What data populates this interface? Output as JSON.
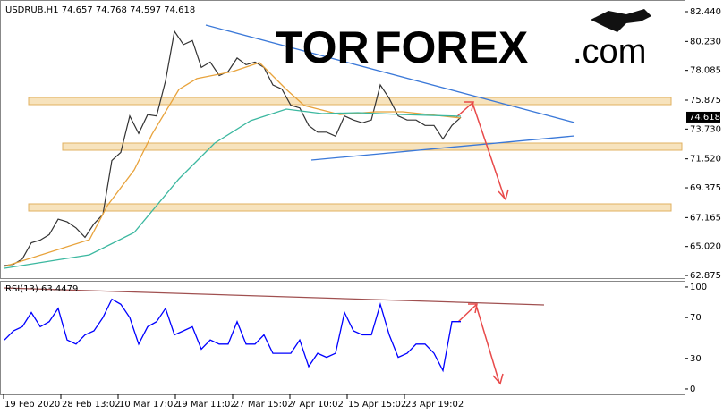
{
  "chart_data": [
    {
      "type": "line",
      "title": "USDRUB,H1  74.657 74.768 74.597 74.618",
      "last_price": 74.618,
      "xlim": [
        -0.5,
        76
      ],
      "ylim": [
        62.679,
        83.302
      ],
      "yticks": [
        {
          "value": 62.875,
          "label": "62.875"
        },
        {
          "value": 65.02,
          "label": "65.020"
        },
        67.165,
        69.375,
        {
          "value": 71.52,
          "label": "71.520"
        },
        {
          "value": 73.73,
          "label": "73.730"
        },
        75.875,
        78.085,
        {
          "value": 80.23,
          "label": "80.230"
        },
        {
          "value": 82.44,
          "label": "82.440"
        }
      ],
      "x": [
        0,
        1,
        2,
        3,
        4,
        5,
        6,
        7,
        8,
        9,
        10,
        11,
        12,
        13,
        14,
        15,
        16,
        17,
        18,
        19,
        20,
        21,
        22,
        23,
        24,
        25,
        26,
        27,
        28,
        29,
        30,
        31,
        32,
        33,
        34,
        35,
        36,
        37,
        38,
        39,
        40,
        41,
        42,
        43,
        44,
        45,
        46,
        47,
        48,
        49,
        50,
        51
      ],
      "series": [
        {
          "color": "#333333",
          "values": [
            63.6,
            63.7,
            64.1,
            65.3,
            65.5,
            65.9,
            67.05,
            66.85,
            66.4,
            65.7,
            66.7,
            67.4,
            71.4,
            72.0,
            74.7,
            73.4,
            74.8,
            74.7,
            77.3,
            80.98,
            79.99,
            80.3,
            78.3,
            78.7,
            77.7,
            78.0,
            79.0,
            78.5,
            78.7,
            78.3,
            77.0,
            76.7,
            75.5,
            75.3,
            74.0,
            73.5,
            73.5,
            73.2,
            74.7,
            74.4,
            74.2,
            74.4,
            77.0,
            76.0,
            74.7,
            74.4,
            74.4,
            74.0,
            74.0,
            73.0,
            74.0,
            74.6
          ]
        },
        {
          "color": "#e8a33c",
          "x": [
            0,
            9.5,
            11.5,
            14.5,
            16.5,
            19.5,
            21.5,
            25.5,
            28.5,
            29.5,
            31.5,
            33.5,
            37.5,
            41.5,
            44.5,
            47.5,
            51
          ],
          "values": [
            63.54,
            65.53,
            68.05,
            70.7,
            73.36,
            76.67,
            77.47,
            78.0,
            78.66,
            78.0,
            76.67,
            75.48,
            74.81,
            75.01,
            75.01,
            74.81,
            74.55
          ]
        },
        {
          "color": "#3cb8a0",
          "x": [
            0,
            9.5,
            14.5,
            19.5,
            23.5,
            27.5,
            31.5,
            35.5,
            39.5,
            44.5,
            51
          ],
          "values": [
            63.41,
            64.4,
            66.06,
            70.04,
            72.69,
            74.35,
            75.21,
            74.88,
            74.95,
            74.81,
            74.68
          ]
        }
      ]
    },
    {
      "type": "line",
      "title": "RSI(13) 63.4479",
      "xlim": [
        -0.5,
        76
      ],
      "ylim": [
        -5.3,
        106.1
      ],
      "yticks": [
        0,
        30,
        70,
        100
      ],
      "xticks": [
        {
          "value": -0.1,
          "label": "19 Feb 2020"
        },
        {
          "value": 6.3,
          "label": "28 Feb 13:02"
        },
        {
          "value": 12.7,
          "label": "10 Mar 17:02"
        },
        {
          "value": 19.1,
          "label": "19 Mar 11:02"
        },
        {
          "value": 25.5,
          "label": "27 Mar 15:02"
        },
        {
          "value": 31.9,
          "label": "7 Apr 10:02"
        },
        {
          "value": 38.3,
          "label": "15 Apr 15:02"
        },
        {
          "value": 44.7,
          "label": "23 Apr 19:02"
        }
      ],
      "x": [
        0,
        1,
        2,
        3,
        4,
        5,
        6,
        7,
        8,
        9,
        10,
        11,
        12,
        13,
        14,
        15,
        16,
        17,
        18,
        19,
        20,
        21,
        22,
        23,
        24,
        25,
        26,
        27,
        28,
        29,
        30,
        31,
        32,
        33,
        34,
        35,
        36,
        37,
        38,
        39,
        40,
        41,
        42,
        43,
        44,
        45,
        46,
        47,
        48,
        49,
        50,
        51
      ],
      "series": [
        {
          "color": "#0000ff",
          "values": [
            48,
            57,
            61,
            75,
            61,
            66,
            79,
            48,
            44,
            53,
            57,
            70,
            88,
            83,
            70,
            44,
            61,
            66,
            79,
            53,
            57,
            61,
            39,
            48,
            44,
            44,
            66,
            44,
            44,
            53,
            35,
            35,
            35,
            48,
            22,
            35,
            31,
            35,
            75,
            57,
            53,
            53,
            83,
            53,
            31,
            35,
            44,
            44,
            35,
            18,
            66,
            66
          ]
        }
      ]
    }
  ],
  "logo": {
    "part1": "TOR",
    "part2": "FOREX",
    "part3": ".com"
  }
}
